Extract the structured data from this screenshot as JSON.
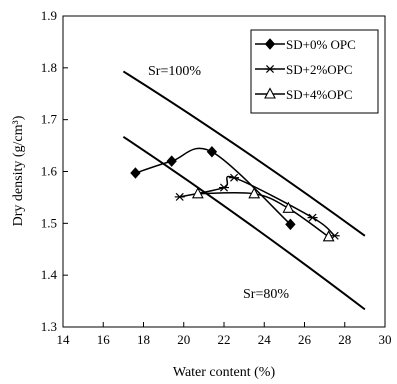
{
  "chart_data": {
    "type": "line",
    "xlabel": "Water content (%)",
    "ylabel": "Dry density (g/cm³)",
    "xlim": [
      14,
      30
    ],
    "ylim": [
      1.3,
      1.9
    ],
    "xticks": [
      "14",
      "16",
      "18",
      "20",
      "22",
      "24",
      "26",
      "28",
      "30"
    ],
    "yticks": [
      "1.3",
      "1.4",
      "1.5",
      "1.6",
      "1.7",
      "1.8",
      "1.9"
    ],
    "grid": false,
    "legend_position": "top-right",
    "series": [
      {
        "name": "SD+0% OPC",
        "marker": "diamond",
        "points": [
          [
            17.6,
            1.597
          ],
          [
            19.4,
            1.62
          ],
          [
            21.4,
            1.638
          ],
          [
            25.3,
            1.498
          ]
        ]
      },
      {
        "name": "SD+2%OPC",
        "marker": "asterisk",
        "points": [
          [
            19.8,
            1.551
          ],
          [
            22.0,
            1.569
          ],
          [
            22.5,
            1.588
          ],
          [
            26.4,
            1.511
          ],
          [
            27.5,
            1.476
          ]
        ]
      },
      {
        "name": "SD+4%OPC",
        "marker": "triangle",
        "points": [
          [
            20.7,
            1.557
          ],
          [
            23.5,
            1.557
          ],
          [
            25.2,
            1.529
          ],
          [
            27.2,
            1.474
          ]
        ]
      }
    ],
    "saturation_lines": [
      {
        "label": "Sr=100%",
        "points": [
          [
            17.0,
            1.793
          ],
          [
            29.0,
            1.476
          ]
        ]
      },
      {
        "label": "Sr=80%",
        "points": [
          [
            17.0,
            1.667
          ],
          [
            29.0,
            1.334
          ]
        ]
      }
    ]
  }
}
